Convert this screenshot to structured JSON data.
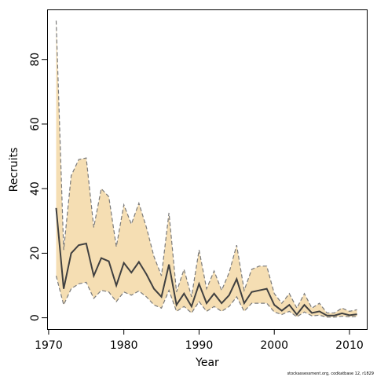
{
  "chart_data": {
    "type": "area",
    "xlabel": "Year",
    "ylabel": "Recruits",
    "xlim": [
      1969.8,
      2012.3
    ],
    "ylim": [
      -3.5,
      95.5
    ],
    "xticks": [
      1970,
      1980,
      1990,
      2000,
      2010
    ],
    "yticks": [
      0,
      20,
      40,
      60,
      80
    ],
    "grid": false,
    "colors": {
      "band": "#f5deb3",
      "bound": "#7a7a7a",
      "line": "#404040"
    },
    "x": [
      1971,
      1972,
      1973,
      1974,
      1975,
      1976,
      1977,
      1978,
      1979,
      1980,
      1981,
      1982,
      1983,
      1984,
      1985,
      1986,
      1987,
      1988,
      1989,
      1990,
      1991,
      1992,
      1993,
      1994,
      1995,
      1996,
      1997,
      1998,
      1999,
      2000,
      2001,
      2002,
      2003,
      2004,
      2005,
      2006,
      2007,
      2008,
      2009,
      2010,
      2011
    ],
    "series": [
      {
        "role": "estimate",
        "values": [
          34,
          9,
          20,
          22.5,
          23,
          13,
          18.5,
          17.5,
          10,
          17,
          14,
          17.3,
          13.5,
          9,
          6.5,
          16.5,
          4,
          7.5,
          3.5,
          10.5,
          4.5,
          7.5,
          4.5,
          7,
          12,
          4.5,
          8,
          8.5,
          9,
          4,
          2.2,
          4,
          1,
          4,
          1.5,
          2,
          0.7,
          0.7,
          1.4,
          0.8,
          1.1
        ]
      },
      {
        "role": "upper",
        "values": [
          92,
          21,
          44,
          49,
          49.5,
          28,
          40,
          37.5,
          22,
          35,
          29,
          35.5,
          28,
          19,
          13,
          32.5,
          8,
          15,
          6.5,
          21,
          9,
          14.5,
          8.5,
          14,
          22.5,
          8.5,
          15,
          16,
          16,
          7.5,
          4.5,
          7.5,
          3,
          7.5,
          3,
          4.5,
          1.5,
          1.5,
          3,
          2,
          2.5
        ]
      },
      {
        "role": "lower",
        "values": [
          13,
          4,
          9,
          10.5,
          11,
          6,
          8.5,
          8,
          5,
          8,
          7,
          8.3,
          6.5,
          4,
          3,
          8.5,
          2,
          3.5,
          1.5,
          5,
          2,
          3.5,
          2,
          3.5,
          6.5,
          2,
          4.5,
          4.5,
          4.5,
          1.8,
          1,
          2,
          0.3,
          1.8,
          0.6,
          0.8,
          0.2,
          0.2,
          0.5,
          0.3,
          0.4
        ]
      }
    ]
  },
  "credit": "stockassessment.org, codkatbase 12, r1829"
}
